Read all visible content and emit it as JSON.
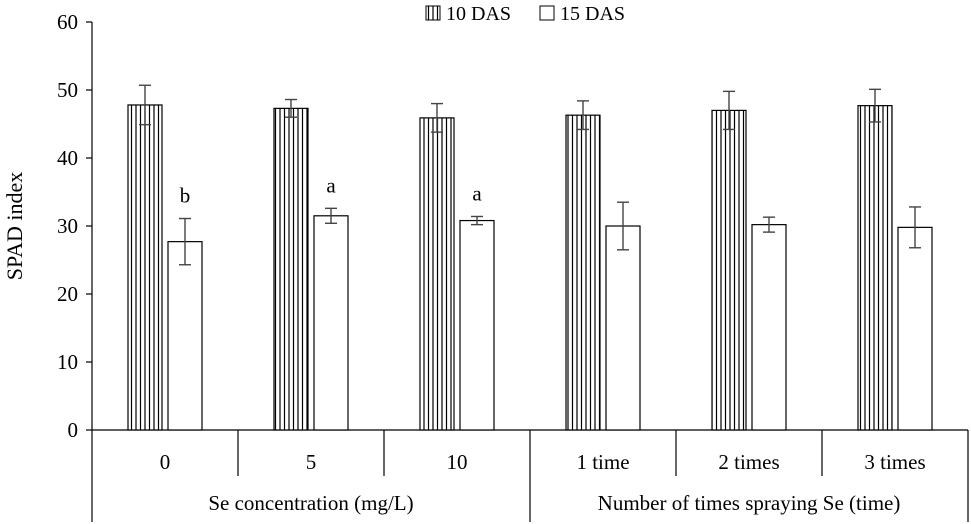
{
  "chart_data": {
    "type": "bar",
    "title": "",
    "ylabel": "SPAD index",
    "ylim": [
      0,
      60
    ],
    "yticks": [
      "0",
      "10",
      "20",
      "30",
      "40",
      "50",
      "60"
    ],
    "categories": [
      "0",
      "5",
      "10",
      "1 time",
      "2 times",
      "3 times"
    ],
    "groups": [
      {
        "label": "Se concentration (mg/L)",
        "categories": [
          "0",
          "5",
          "10"
        ]
      },
      {
        "label": "Number of times spraying Se (time)",
        "categories": [
          "1 time",
          "2 times",
          "3 times"
        ]
      }
    ],
    "series": [
      {
        "name": "10 DAS",
        "pattern": "vertical-stripes",
        "values": [
          47.8,
          47.3,
          45.9,
          46.3,
          47.0,
          47.7
        ],
        "errors": [
          2.9,
          1.3,
          2.1,
          2.1,
          2.8,
          2.4
        ]
      },
      {
        "name": "15 DAS",
        "pattern": "white",
        "values": [
          27.7,
          31.5,
          30.8,
          30.0,
          30.2,
          29.8
        ],
        "errors": [
          3.4,
          1.1,
          0.6,
          3.5,
          1.1,
          3.0
        ],
        "annotations": [
          "b",
          "a",
          "a",
          "",
          "",
          ""
        ]
      }
    ],
    "legend_position": "top-center"
  }
}
